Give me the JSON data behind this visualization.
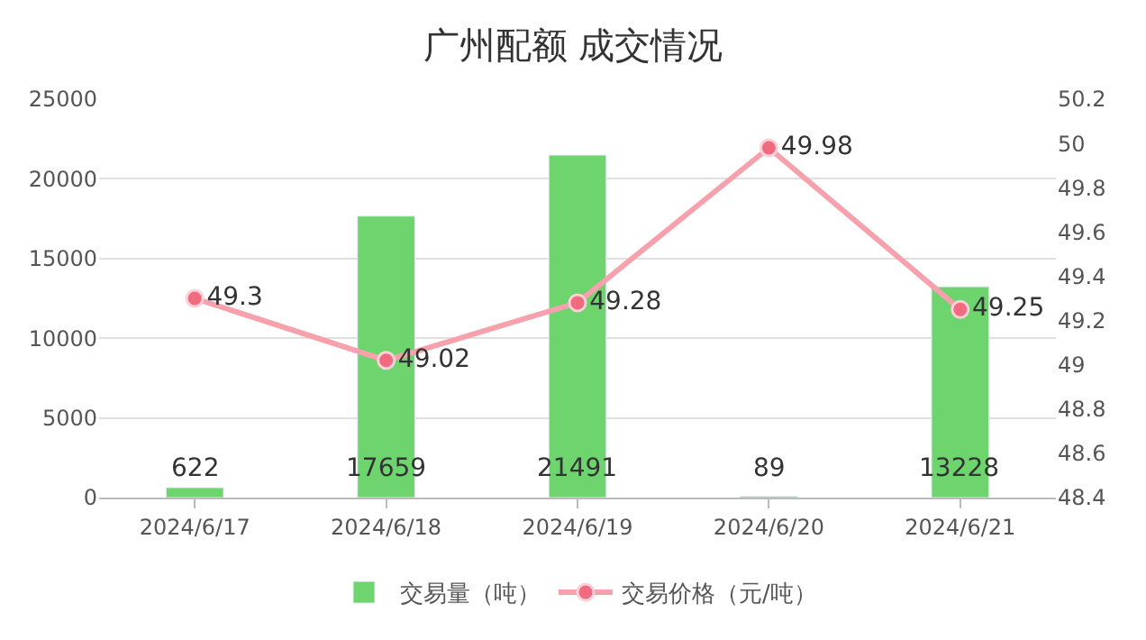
{
  "chart_data": {
    "type": "bar",
    "title": "广州配额 成交情况",
    "categories": [
      "2024/6/17",
      "2024/6/18",
      "2024/6/19",
      "2024/6/20",
      "2024/6/21"
    ],
    "series": [
      {
        "name": "交易量（吨）",
        "color": "#6dd46e",
        "values": [
          622,
          17659,
          21491,
          89,
          13228
        ]
      },
      {
        "name": "交易价格（元/吨）",
        "type": "line",
        "axis": "y2",
        "color": "#f7a1ad",
        "values": [
          49.3,
          49.02,
          49.28,
          49.98,
          49.25
        ]
      }
    ],
    "ylim": [
      0,
      25000
    ],
    "yticks": [
      0,
      5000,
      10000,
      15000,
      20000,
      25000
    ],
    "y2lim": [
      48.4,
      50.2
    ],
    "y2ticks": [
      48.4,
      48.6,
      48.8,
      49,
      49.2,
      49.4,
      49.6,
      49.8,
      50,
      50.2
    ],
    "grid": "y",
    "legend": "bottom",
    "marker": "circle",
    "line_style": "solid",
    "data_labels": true
  }
}
